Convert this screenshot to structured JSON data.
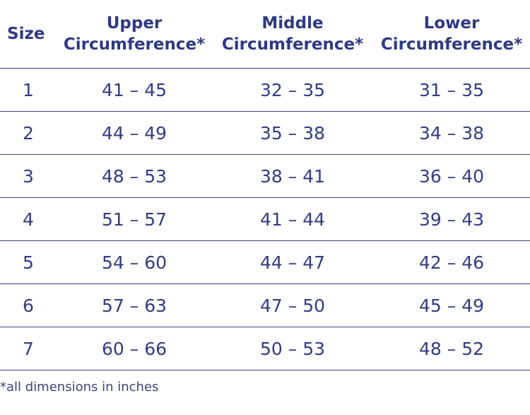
{
  "table": {
    "headers": {
      "size": "Size",
      "upper": {
        "line1": "Upper",
        "line2": "Circumference*"
      },
      "middle": {
        "line1": "Middle",
        "line2": "Circumference*"
      },
      "lower": {
        "line1": "Lower",
        "line2": "Circumference*"
      }
    },
    "rows": [
      {
        "size": "1",
        "upper": "41 – 45",
        "middle": "32 – 35",
        "lower": "31 – 35"
      },
      {
        "size": "2",
        "upper": "44 – 49",
        "middle": "35 – 38",
        "lower": "34 – 38"
      },
      {
        "size": "3",
        "upper": "48 – 53",
        "middle": "38 – 41",
        "lower": "36 – 40"
      },
      {
        "size": "4",
        "upper": "51 – 57",
        "middle": "41 – 44",
        "lower": "39 – 43"
      },
      {
        "size": "5",
        "upper": "54 – 60",
        "middle": "44 – 47",
        "lower": "42 – 46"
      },
      {
        "size": "6",
        "upper": "57 – 63",
        "middle": "47 – 50",
        "lower": "45 – 49"
      },
      {
        "size": "7",
        "upper": "60 – 66",
        "middle": "50 – 53",
        "lower": "48 – 52"
      }
    ]
  },
  "footnote": "*all dimensions in inches",
  "colors": {
    "header_text": "#2e3a84",
    "body_text": "#323c82",
    "rule": "#3a4385",
    "footnote_text": "#3d4578"
  }
}
